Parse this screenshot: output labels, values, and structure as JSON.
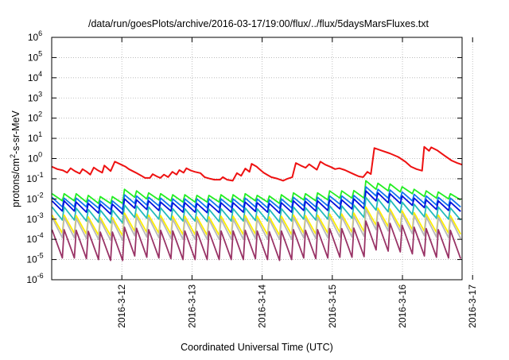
{
  "chart_data": {
    "type": "line",
    "title": "/data/run/goesPlots/archive/2016-03-17/19:00/flux/../flux/5daysMarsFluxes.txt",
    "xlabel": "Coordinated Universal Time (UTC)",
    "ylabel_parts": [
      "protons/cm",
      "2",
      "-s-sr-MeV"
    ],
    "y_scale": "log",
    "ylim": [
      1e-06,
      1000000.0
    ],
    "y_ticks": [
      {
        "base": "10",
        "exp": "-6"
      },
      {
        "base": "10",
        "exp": "-5"
      },
      {
        "base": "10",
        "exp": "-4"
      },
      {
        "base": "10",
        "exp": "-3"
      },
      {
        "base": "10",
        "exp": "-2"
      },
      {
        "base": "10",
        "exp": "-1"
      },
      {
        "base": "10",
        "exp": "0"
      },
      {
        "base": "10",
        "exp": "1"
      },
      {
        "base": "10",
        "exp": "2"
      },
      {
        "base": "10",
        "exp": "3"
      },
      {
        "base": "10",
        "exp": "4"
      },
      {
        "base": "10",
        "exp": "5"
      },
      {
        "base": "10",
        "exp": "6"
      }
    ],
    "xlim_days": [
      0,
      5.85
    ],
    "x_ticks": [
      "2016-3-12",
      "2016-3-13",
      "2016-3-14",
      "2016-3-15",
      "2016-3-16",
      "2016-3-17"
    ],
    "grid": true,
    "series": [
      {
        "color": "#ee1111",
        "values": [
          [
            0.0,
            0.4
          ],
          [
            0.08,
            0.3
          ],
          [
            0.16,
            0.26
          ],
          [
            0.22,
            0.2
          ],
          [
            0.27,
            0.33
          ],
          [
            0.33,
            0.24
          ],
          [
            0.4,
            0.18
          ],
          [
            0.44,
            0.3
          ],
          [
            0.5,
            0.22
          ],
          [
            0.55,
            0.16
          ],
          [
            0.6,
            0.36
          ],
          [
            0.66,
            0.26
          ],
          [
            0.72,
            0.2
          ],
          [
            0.75,
            0.45
          ],
          [
            0.8,
            0.32
          ],
          [
            0.84,
            0.24
          ],
          [
            0.9,
            0.7
          ],
          [
            0.98,
            0.52
          ],
          [
            1.05,
            0.4
          ],
          [
            1.1,
            0.3
          ],
          [
            1.2,
            0.2
          ],
          [
            1.28,
            0.14
          ],
          [
            1.33,
            0.11
          ],
          [
            1.4,
            0.11
          ],
          [
            1.44,
            0.17
          ],
          [
            1.5,
            0.13
          ],
          [
            1.55,
            0.11
          ],
          [
            1.6,
            0.16
          ],
          [
            1.66,
            0.12
          ],
          [
            1.72,
            0.22
          ],
          [
            1.78,
            0.16
          ],
          [
            1.82,
            0.27
          ],
          [
            1.88,
            0.2
          ],
          [
            1.92,
            0.33
          ],
          [
            1.98,
            0.26
          ],
          [
            2.04,
            0.22
          ],
          [
            2.12,
            0.19
          ],
          [
            2.18,
            0.12
          ],
          [
            2.26,
            0.1
          ],
          [
            2.32,
            0.09
          ],
          [
            2.4,
            0.09
          ],
          [
            2.44,
            0.12
          ],
          [
            2.5,
            0.09
          ],
          [
            2.58,
            0.08
          ],
          [
            2.64,
            0.19
          ],
          [
            2.7,
            0.14
          ],
          [
            2.76,
            0.32
          ],
          [
            2.82,
            0.22
          ],
          [
            2.85,
            0.55
          ],
          [
            2.92,
            0.4
          ],
          [
            2.96,
            0.3
          ],
          [
            3.02,
            0.2
          ],
          [
            3.08,
            0.15
          ],
          [
            3.13,
            0.12
          ],
          [
            3.22,
            0.1
          ],
          [
            3.3,
            0.08
          ],
          [
            3.36,
            0.1
          ],
          [
            3.43,
            0.12
          ],
          [
            3.48,
            0.6
          ],
          [
            3.55,
            0.45
          ],
          [
            3.62,
            0.35
          ],
          [
            3.67,
            0.52
          ],
          [
            3.74,
            0.35
          ],
          [
            3.78,
            0.28
          ],
          [
            3.83,
            0.7
          ],
          [
            3.9,
            0.5
          ],
          [
            3.98,
            0.38
          ],
          [
            4.04,
            0.3
          ],
          [
            4.1,
            0.33
          ],
          [
            4.18,
            0.27
          ],
          [
            4.26,
            0.2
          ],
          [
            4.32,
            0.16
          ],
          [
            4.38,
            0.13
          ],
          [
            4.44,
            0.12
          ],
          [
            4.5,
            0.22
          ],
          [
            4.55,
            0.17
          ],
          [
            4.6,
            3.3
          ],
          [
            4.7,
            2.5
          ],
          [
            4.82,
            1.8
          ],
          [
            4.94,
            1.2
          ],
          [
            5.04,
            0.7
          ],
          [
            5.12,
            0.4
          ],
          [
            5.2,
            0.3
          ],
          [
            5.28,
            0.25
          ],
          [
            5.31,
            3.8
          ],
          [
            5.38,
            2.4
          ],
          [
            5.41,
            3.6
          ],
          [
            5.5,
            2.5
          ],
          [
            5.6,
            1.4
          ],
          [
            5.7,
            0.8
          ],
          [
            5.78,
            0.6
          ],
          [
            5.85,
            0.5
          ]
        ]
      },
      {
        "color": "#22ee22",
        "spikes": [
          0.018,
          0.018,
          0.018,
          0.015,
          0.013,
          0.013,
          0.03,
          0.025,
          0.02,
          0.018,
          0.016,
          0.016,
          0.015,
          0.015,
          0.016,
          0.016,
          0.018,
          0.015,
          0.014,
          0.016,
          0.02,
          0.018,
          0.02,
          0.025,
          0.025,
          0.026,
          0.08,
          0.06,
          0.055,
          0.04,
          0.03,
          0.025,
          0.022,
          0.018
        ],
        "troughs": [
          0.008,
          0.008,
          0.007,
          0.006,
          0.006,
          0.006,
          0.012,
          0.01,
          0.009,
          0.008,
          0.007,
          0.007,
          0.007,
          0.007,
          0.007,
          0.007,
          0.008,
          0.007,
          0.006,
          0.007,
          0.009,
          0.008,
          0.009,
          0.011,
          0.011,
          0.011,
          0.03,
          0.025,
          0.022,
          0.018,
          0.013,
          0.011,
          0.01,
          0.009
        ]
      },
      {
        "color": "#1177ee",
        "spikes": [
          0.012,
          0.011,
          0.011,
          0.009,
          0.008,
          0.008,
          0.016,
          0.014,
          0.012,
          0.011,
          0.01,
          0.01,
          0.01,
          0.01,
          0.01,
          0.01,
          0.011,
          0.01,
          0.009,
          0.01,
          0.012,
          0.011,
          0.012,
          0.014,
          0.014,
          0.015,
          0.04,
          0.03,
          0.028,
          0.022,
          0.017,
          0.014,
          0.012,
          0.011
        ],
        "troughs": [
          0.004,
          0.004,
          0.004,
          0.0035,
          0.003,
          0.003,
          0.006,
          0.005,
          0.0045,
          0.004,
          0.0038,
          0.0038,
          0.0036,
          0.0036,
          0.0038,
          0.0038,
          0.004,
          0.0036,
          0.0034,
          0.0036,
          0.0045,
          0.004,
          0.0045,
          0.0055,
          0.0055,
          0.0055,
          0.014,
          0.011,
          0.01,
          0.008,
          0.006,
          0.005,
          0.0045,
          0.004
        ]
      },
      {
        "color": "#0011dd",
        "spikes": [
          0.008,
          0.008,
          0.007,
          0.006,
          0.0055,
          0.0055,
          0.01,
          0.009,
          0.008,
          0.007,
          0.0065,
          0.0065,
          0.006,
          0.006,
          0.0065,
          0.0065,
          0.007,
          0.0065,
          0.006,
          0.0065,
          0.008,
          0.0075,
          0.008,
          0.009,
          0.009,
          0.01,
          0.025,
          0.02,
          0.018,
          0.014,
          0.011,
          0.009,
          0.008,
          0.007
        ],
        "troughs": [
          0.0025,
          0.0025,
          0.0022,
          0.002,
          0.0018,
          0.0018,
          0.0035,
          0.003,
          0.0027,
          0.0025,
          0.0022,
          0.0022,
          0.0021,
          0.0021,
          0.0022,
          0.0022,
          0.0024,
          0.0022,
          0.002,
          0.0022,
          0.0027,
          0.0025,
          0.0027,
          0.0032,
          0.0032,
          0.0033,
          0.008,
          0.0065,
          0.006,
          0.0048,
          0.0037,
          0.003,
          0.0027,
          0.0024
        ]
      },
      {
        "color": "#22bbbb",
        "spikes": [
          0.004,
          0.004,
          0.0035,
          0.003,
          0.0028,
          0.0028,
          0.005,
          0.0045,
          0.004,
          0.0036,
          0.0033,
          0.0033,
          0.0031,
          0.0031,
          0.0033,
          0.0033,
          0.0036,
          0.0033,
          0.003,
          0.0033,
          0.004,
          0.0037,
          0.004,
          0.0045,
          0.0045,
          0.005,
          0.012,
          0.01,
          0.009,
          0.007,
          0.0055,
          0.0045,
          0.004,
          0.0036
        ],
        "troughs": [
          0.0009,
          0.0009,
          0.0008,
          0.0007,
          0.00065,
          0.00065,
          0.0012,
          0.0011,
          0.001,
          0.0009,
          0.0008,
          0.0008,
          0.00075,
          0.00075,
          0.0008,
          0.0008,
          0.00085,
          0.0008,
          0.0007,
          0.0008,
          0.001,
          0.0009,
          0.001,
          0.0011,
          0.0011,
          0.0012,
          0.0028,
          0.0023,
          0.0021,
          0.0017,
          0.0013,
          0.0011,
          0.001,
          0.0009
        ]
      },
      {
        "color": "#ffee00",
        "spikes": [
          0.0016,
          0.0016,
          0.0015,
          0.0013,
          0.0012,
          0.0012,
          0.002,
          0.0018,
          0.0016,
          0.0015,
          0.0014,
          0.0014,
          0.0013,
          0.0013,
          0.0014,
          0.0014,
          0.0015,
          0.0014,
          0.0013,
          0.0014,
          0.0016,
          0.0015,
          0.0016,
          0.0018,
          0.0018,
          0.002,
          0.004,
          0.0035,
          0.0032,
          0.0026,
          0.0021,
          0.0018,
          0.0016,
          0.0015
        ],
        "troughs": [
          0.0002,
          0.0002,
          0.00018,
          0.00016,
          0.00015,
          0.00015,
          0.00025,
          0.00022,
          0.0002,
          0.00018,
          0.00017,
          0.00017,
          0.00016,
          0.00016,
          0.00017,
          0.00017,
          0.00018,
          0.00017,
          0.00016,
          0.00017,
          0.0002,
          0.00018,
          0.0002,
          0.00022,
          0.00022,
          0.00024,
          0.0005,
          0.00042,
          0.00038,
          0.0003,
          0.00025,
          0.00022,
          0.0002,
          0.00018
        ]
      },
      {
        "color": "#b8b8b8",
        "spikes": [
          0.0012,
          0.0012,
          0.0011,
          0.001,
          0.0009,
          0.0009,
          0.0015,
          0.0013,
          0.0012,
          0.0011,
          0.001,
          0.001,
          0.00095,
          0.00095,
          0.001,
          0.001,
          0.0011,
          0.001,
          0.00095,
          0.001,
          0.0012,
          0.0011,
          0.0012,
          0.0013,
          0.0013,
          0.0014,
          0.003,
          0.0026,
          0.0024,
          0.0019,
          0.0015,
          0.0013,
          0.0012,
          0.0011
        ],
        "troughs": [
          0.00012,
          0.00012,
          0.00011,
          0.0001,
          9e-05,
          9e-05,
          0.00015,
          0.00013,
          0.00012,
          0.00011,
          0.0001,
          0.0001,
          0.0001,
          0.0001,
          0.0001,
          0.0001,
          0.00011,
          0.0001,
          0.0001,
          0.0001,
          0.00012,
          0.00011,
          0.00012,
          0.00013,
          0.00013,
          0.00014,
          0.0003,
          0.00026,
          0.00024,
          0.00019,
          0.00015,
          0.00013,
          0.00012,
          0.00011
        ]
      },
      {
        "color": "#993366",
        "spikes": [
          0.0003,
          0.0003,
          0.00028,
          0.00025,
          0.00023,
          0.00023,
          0.0004,
          0.00035,
          0.0003,
          0.00028,
          0.00026,
          0.00026,
          0.00025,
          0.00025,
          0.00026,
          0.00026,
          0.00028,
          0.00026,
          0.00024,
          0.00026,
          0.0003,
          0.00028,
          0.0003,
          0.00034,
          0.00034,
          0.00036,
          0.0008,
          0.0007,
          0.00062,
          0.0005,
          0.0004,
          0.00034,
          0.0003,
          0.00028
        ],
        "troughs": [
          1.2e-05,
          1.2e-05,
          1.1e-05,
          1e-05,
          9e-06,
          9e-06,
          1.5e-05,
          1.3e-05,
          1.2e-05,
          1.1e-05,
          1e-05,
          1e-05,
          1e-05,
          1e-05,
          1e-05,
          1e-05,
          1.1e-05,
          1e-05,
          9e-06,
          1e-05,
          1.2e-05,
          1.1e-05,
          1.2e-05,
          1.3e-05,
          1.3e-05,
          1.4e-05,
          3e-05,
          2.6e-05,
          2.4e-05,
          1.9e-05,
          1.5e-05,
          1.3e-05,
          1.2e-05,
          1.1e-05
        ]
      }
    ]
  }
}
